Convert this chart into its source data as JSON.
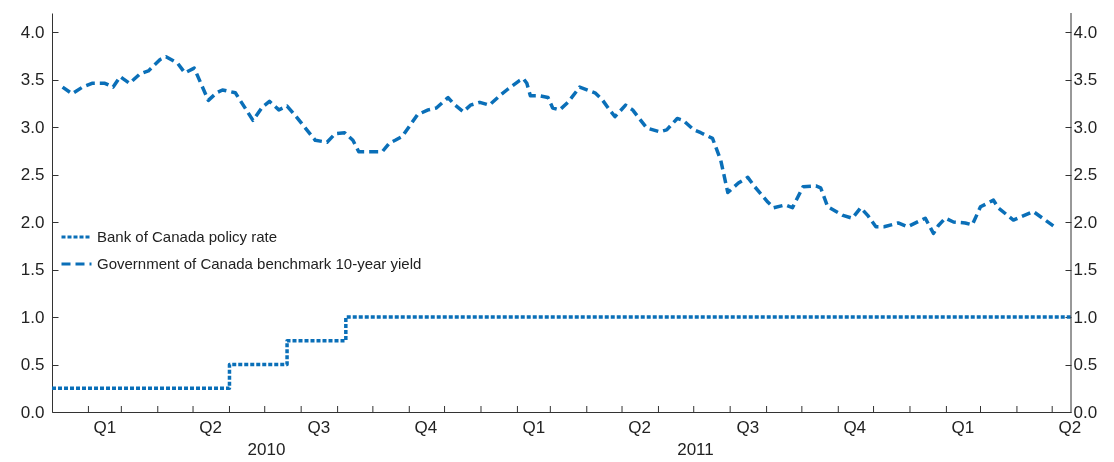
{
  "chart_data": {
    "type": "line",
    "xlim": [
      "2010-01-01",
      "2012-05-17"
    ],
    "xticks": [
      {
        "value": "2010-02-01",
        "label": null
      },
      {
        "value": "2010-03-01",
        "label": null
      },
      {
        "value": "2010-04-01",
        "label": null
      },
      {
        "value": "2010-05-01",
        "label": null
      },
      {
        "value": "2010-06-01",
        "label": null
      },
      {
        "value": "2010-07-01",
        "label": null
      },
      {
        "value": "2010-08-01",
        "label": null
      },
      {
        "value": "2010-09-01",
        "label": null
      },
      {
        "value": "2010-10-01",
        "label": null
      },
      {
        "value": "2010-11-01",
        "label": null
      },
      {
        "value": "2010-12-01",
        "label": null
      },
      {
        "value": "2011-01-01",
        "label": null
      },
      {
        "value": "2011-02-01",
        "label": null
      },
      {
        "value": "2011-03-01",
        "label": null
      },
      {
        "value": "2011-04-01",
        "label": null
      },
      {
        "value": "2011-05-01",
        "label": null
      },
      {
        "value": "2011-06-01",
        "label": null
      },
      {
        "value": "2011-07-01",
        "label": null
      },
      {
        "value": "2011-08-01",
        "label": null
      },
      {
        "value": "2011-09-01",
        "label": null
      },
      {
        "value": "2011-10-01",
        "label": null
      },
      {
        "value": "2011-11-01",
        "label": null
      },
      {
        "value": "2011-12-01",
        "label": null
      },
      {
        "value": "2012-01-01",
        "label": null
      },
      {
        "value": "2012-02-01",
        "label": null
      },
      {
        "value": "2012-03-01",
        "label": null
      },
      {
        "value": "2012-04-01",
        "label": null
      },
      {
        "value": "2012-05-01",
        "label": null
      },
      {
        "value": "2010-02-15",
        "label": "Q1"
      },
      {
        "value": "2010-05-16",
        "label": "Q2"
      },
      {
        "value": "2010-08-16",
        "label": "Q3"
      },
      {
        "value": "2010-11-15",
        "label": "Q4"
      },
      {
        "value": "2011-02-15",
        "label": "Q1"
      },
      {
        "value": "2011-05-16",
        "label": "Q2"
      },
      {
        "value": "2011-08-16",
        "label": "Q3"
      },
      {
        "value": "2011-11-15",
        "label": "Q4"
      },
      {
        "value": "2012-02-15",
        "label": "Q1"
      },
      {
        "value": "2012-05-16",
        "label": "Q2"
      }
    ],
    "ylim": [
      0,
      4.2
    ],
    "yticks": [
      {
        "value": 0,
        "label": "0.0"
      },
      {
        "value": 0.5,
        "label": "0.5"
      },
      {
        "value": 1,
        "label": "1.0"
      },
      {
        "value": 1.5,
        "label": "1.5"
      },
      {
        "value": 2,
        "label": "2.0"
      },
      {
        "value": 2.5,
        "label": "2.5"
      },
      {
        "value": 3,
        "label": "3.0"
      },
      {
        "value": 3.5,
        "label": "3.5"
      },
      {
        "value": 4,
        "label": "4.0"
      }
    ],
    "y2lim": [
      0,
      4.2
    ],
    "y2ticks": [
      {
        "value": 0,
        "label": "0.0"
      },
      {
        "value": 0.5,
        "label": "0.5"
      },
      {
        "value": 1,
        "label": "1.0"
      },
      {
        "value": 1.5,
        "label": "1.5"
      },
      {
        "value": 2,
        "label": "2.0"
      },
      {
        "value": 2.5,
        "label": "2.5"
      },
      {
        "value": 3,
        "label": "3.0"
      },
      {
        "value": 3.5,
        "label": "3.5"
      },
      {
        "value": 4,
        "label": "4.0"
      }
    ],
    "annotations": [
      "2010",
      "2011"
    ],
    "legend": "left",
    "grid": false,
    "series": [
      {
        "name": "Bank of Canada policy rate",
        "type": "step",
        "color": "#0a6fb8",
        "line_style": "dotted",
        "x": [
          "2010-01-01",
          "2010-06-01",
          "2010-07-20",
          "2010-09-08",
          "2012-05-17"
        ],
        "values": [
          0.25,
          0.5,
          0.75,
          1.0,
          1.0
        ]
      },
      {
        "name": "Government of Canada benchmark 10-year yield",
        "color": "#0a6fb8",
        "line_style": "dashed",
        "x": [
          "2010-01-10",
          "2010-01-18",
          "2010-01-27",
          "2010-02-04",
          "2010-02-15",
          "2010-02-22",
          "2010-02-28",
          "2010-03-08",
          "2010-03-17",
          "2010-03-24",
          "2010-04-03",
          "2010-04-08",
          "2010-04-18",
          "2010-04-24",
          "2010-05-02",
          "2010-05-14",
          "2010-05-21",
          "2010-05-26",
          "2010-06-06",
          "2010-06-21",
          "2010-06-29",
          "2010-07-05",
          "2010-07-13",
          "2010-07-20",
          "2010-07-27",
          "2010-08-13",
          "2010-08-23",
          "2010-08-30",
          "2010-09-07",
          "2010-09-14",
          "2010-09-19",
          "2010-10-09",
          "2010-10-15",
          "2010-10-20",
          "2010-10-26",
          "2010-11-08",
          "2010-11-17",
          "2010-11-24",
          "2010-12-04",
          "2010-12-09",
          "2010-12-17",
          "2010-12-23",
          "2010-12-31",
          "2011-01-08",
          "2011-01-17",
          "2011-01-24",
          "2011-02-03",
          "2011-02-06",
          "2011-02-09",
          "2011-02-12",
          "2011-02-19",
          "2011-02-27",
          "2011-03-03",
          "2011-03-09",
          "2011-03-16",
          "2011-03-26",
          "2011-04-08",
          "2011-04-14",
          "2011-04-21",
          "2011-04-25",
          "2011-05-04",
          "2011-05-10",
          "2011-05-22",
          "2011-06-02",
          "2011-06-08",
          "2011-06-17",
          "2011-06-22",
          "2011-07-01",
          "2011-07-07",
          "2011-07-17",
          "2011-07-24",
          "2011-07-30",
          "2011-08-08",
          "2011-08-16",
          "2011-08-22",
          "2011-09-02",
          "2011-09-07",
          "2011-09-17",
          "2011-09-23",
          "2011-10-02",
          "2011-10-13",
          "2011-10-17",
          "2011-10-23",
          "2011-11-05",
          "2011-11-13",
          "2011-11-20",
          "2011-11-26",
          "2011-12-03",
          "2011-12-10",
          "2011-12-22",
          "2011-12-30",
          "2012-01-14",
          "2012-01-21",
          "2012-01-25",
          "2012-01-31",
          "2012-02-07",
          "2012-02-17",
          "2012-02-23",
          "2012-03-01",
          "2012-03-12",
          "2012-03-16",
          "2012-03-29",
          "2012-04-15",
          "2012-05-03"
        ],
        "values": [
          3.42,
          3.35,
          3.42,
          3.46,
          3.46,
          3.42,
          3.53,
          3.46,
          3.56,
          3.59,
          3.71,
          3.74,
          3.67,
          3.57,
          3.62,
          3.28,
          3.36,
          3.39,
          3.36,
          3.07,
          3.21,
          3.27,
          3.18,
          3.22,
          3.12,
          2.86,
          2.84,
          2.93,
          2.94,
          2.86,
          2.74,
          2.74,
          2.83,
          2.86,
          2.9,
          3.13,
          3.18,
          3.2,
          3.31,
          3.24,
          3.16,
          3.23,
          3.26,
          3.23,
          3.33,
          3.4,
          3.49,
          3.51,
          3.46,
          3.33,
          3.33,
          3.31,
          3.2,
          3.18,
          3.26,
          3.42,
          3.36,
          3.29,
          3.17,
          3.11,
          3.23,
          3.18,
          2.99,
          2.95,
          2.97,
          3.09,
          3.07,
          2.97,
          2.94,
          2.88,
          2.65,
          2.31,
          2.41,
          2.47,
          2.37,
          2.21,
          2.15,
          2.18,
          2.15,
          2.37,
          2.38,
          2.36,
          2.16,
          2.07,
          2.04,
          2.15,
          2.07,
          1.95,
          1.95,
          1.99,
          1.95,
          2.04,
          1.88,
          1.96,
          2.04,
          2.0,
          1.99,
          1.97,
          2.16,
          2.23,
          2.15,
          2.02,
          2.11,
          1.95
        ]
      }
    ]
  }
}
